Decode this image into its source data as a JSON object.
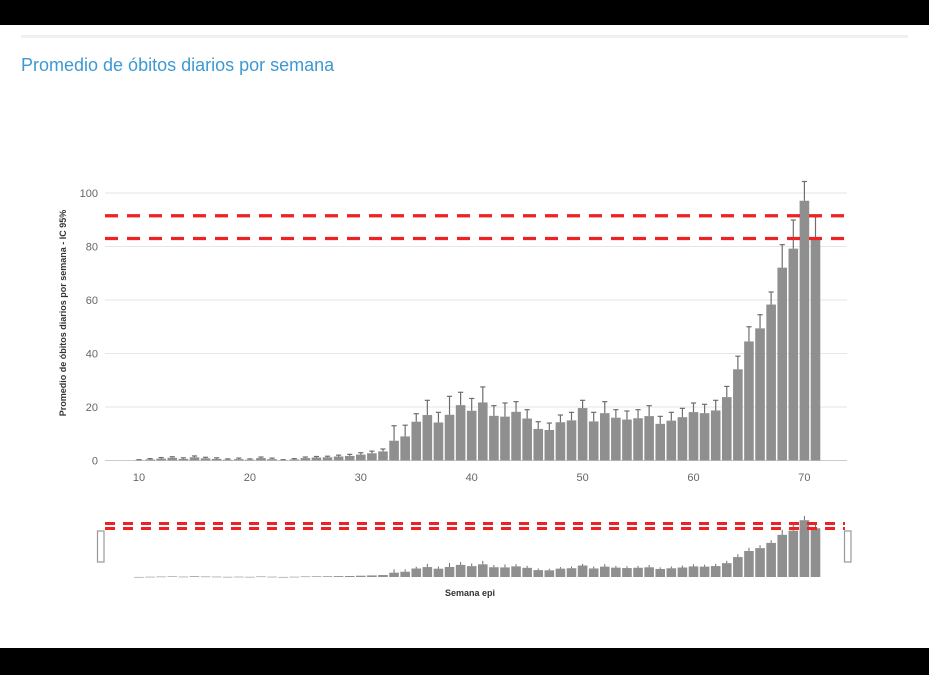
{
  "page": {
    "title": "Promedio de óbitos diarios por semana",
    "title_color": "#3d99d2"
  },
  "chart_data": {
    "type": "bar",
    "title": "Promedio de óbitos diarios por semana",
    "xlabel": "Semana epi",
    "ylabel": "Promedio de óbitos diarios por semana - IC 95%",
    "x_ticks": [
      10,
      20,
      30,
      40,
      50,
      60,
      70
    ],
    "y_ticks": [
      0,
      20,
      40,
      60,
      80,
      100
    ],
    "ylim": [
      0,
      105
    ],
    "grid": true,
    "bar_color": "#8f8f8f",
    "error_bar_color": "#6e6e6e",
    "grid_color": "#e6e6e6",
    "axis_line_color": "#cccccc",
    "tick_label_color": "#666666",
    "axis_title_color": "#333333",
    "weeks": [
      8,
      9,
      10,
      11,
      12,
      13,
      14,
      15,
      16,
      17,
      18,
      19,
      20,
      21,
      22,
      23,
      24,
      25,
      26,
      27,
      28,
      29,
      30,
      31,
      32,
      33,
      34,
      35,
      36,
      37,
      38,
      39,
      40,
      41,
      42,
      43,
      44,
      45,
      46,
      47,
      48,
      49,
      50,
      51,
      52,
      53,
      54,
      55,
      56,
      57,
      58,
      59,
      60,
      61,
      62,
      63,
      64,
      65,
      66,
      67,
      68,
      69,
      70,
      71
    ],
    "values": [
      0,
      0,
      0.1,
      0.4,
      0.7,
      1.0,
      0.6,
      1.2,
      0.8,
      0.6,
      0.3,
      0.5,
      0.3,
      0.9,
      0.5,
      0.1,
      0.4,
      0.9,
      1.1,
      1.2,
      1.5,
      1.7,
      2.2,
      2.7,
      3.4,
      7.4,
      9.0,
      14.5,
      17.0,
      14.2,
      17.1,
      20.7,
      18.6,
      21.7,
      16.7,
      16.4,
      18.2,
      15.7,
      11.8,
      11.4,
      14.3,
      15.0,
      19.6,
      14.6,
      17.7,
      16.0,
      15.3,
      15.8,
      16.6,
      13.7,
      14.9,
      16.2,
      18.1,
      17.7,
      18.7,
      23.7,
      34.1,
      44.5,
      49.4,
      58.3,
      72.1,
      79.2,
      97.1,
      83.3
    ],
    "upper_ci": [
      0,
      0,
      0.3,
      0.7,
      1.1,
      1.4,
      1.0,
      1.7,
      1.2,
      1.0,
      0.6,
      0.9,
      0.6,
      1.3,
      0.9,
      0.3,
      0.7,
      1.3,
      1.5,
      1.6,
      2.0,
      2.3,
      2.9,
      3.5,
      4.3,
      13.0,
      13.2,
      17.5,
      22.5,
      18.0,
      24.0,
      25.5,
      23.2,
      27.5,
      20.5,
      21.5,
      22.0,
      19.0,
      14.5,
      14.0,
      17.0,
      18.0,
      22.5,
      18.0,
      22.0,
      19.0,
      18.5,
      19.0,
      20.5,
      16.5,
      18.0,
      19.5,
      21.5,
      21.0,
      22.5,
      27.7,
      39.0,
      50.0,
      54.5,
      63.0,
      80.7,
      89.9,
      104.3,
      91.1
    ],
    "last_week_lower_ci": 83.0,
    "reference_lines": {
      "values": [
        91.5,
        83.0
      ],
      "color": "#ee2123",
      "style": "dashed"
    },
    "navigator": {
      "mirrors_series": true,
      "handle_count": 2,
      "handle_fill": "#ffffff",
      "handle_border": "#999999"
    }
  }
}
